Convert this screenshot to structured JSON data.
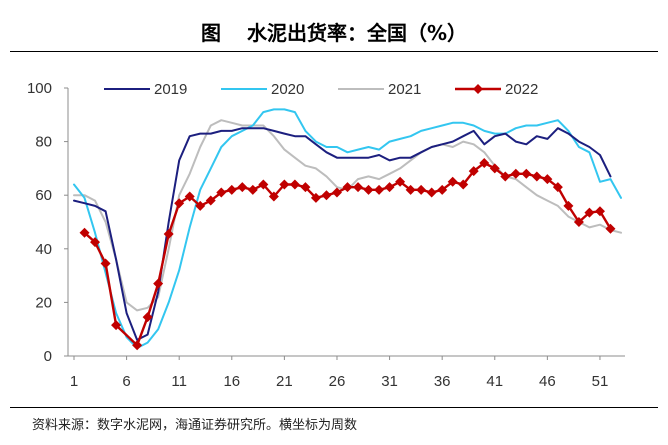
{
  "figure": {
    "label": "图"
  },
  "source": "资料来源：数字水泥网，海通证券研究所。横坐标为周数",
  "chart_data": {
    "type": "line",
    "title": "水泥出货率：全国（%）",
    "xlim": [
      1,
      53
    ],
    "ylim": [
      0,
      100
    ],
    "xticks": [
      1,
      6,
      11,
      16,
      21,
      26,
      31,
      36,
      41,
      46,
      51
    ],
    "yticks": [
      0,
      20,
      40,
      60,
      80,
      100
    ],
    "x": [
      1,
      2,
      3,
      4,
      5,
      6,
      7,
      8,
      9,
      10,
      11,
      12,
      13,
      14,
      15,
      16,
      17,
      18,
      19,
      20,
      21,
      22,
      23,
      24,
      25,
      26,
      27,
      28,
      29,
      30,
      31,
      32,
      33,
      34,
      35,
      36,
      37,
      38,
      39,
      40,
      41,
      42,
      43,
      44,
      45,
      46,
      47,
      48,
      49,
      50,
      51,
      52,
      53
    ],
    "series": [
      {
        "name": "2019",
        "color": "#1c1f7f",
        "markers": false,
        "values": [
          58,
          57,
          56,
          54,
          36,
          16,
          6,
          8,
          24,
          50,
          73,
          82,
          83,
          83,
          84,
          84,
          85,
          85,
          85,
          84,
          83,
          82,
          82,
          79,
          76,
          74,
          74,
          74,
          74,
          75,
          73,
          74,
          74,
          76,
          78,
          79,
          80,
          82,
          84,
          79,
          82,
          83,
          80,
          79,
          82,
          81,
          85,
          83,
          80,
          78,
          75,
          67,
          null
        ]
      },
      {
        "name": "2020",
        "color": "#33c6f0",
        "markers": false,
        "values": [
          64,
          59,
          46,
          31,
          16,
          7,
          3,
          5,
          10,
          20,
          32,
          48,
          62,
          70,
          78,
          82,
          84,
          86,
          91,
          92,
          92,
          91,
          84,
          80,
          78,
          78,
          76,
          77,
          78,
          77,
          80,
          81,
          82,
          84,
          85,
          86,
          87,
          87,
          86,
          84,
          83,
          83,
          85,
          86,
          86,
          87,
          88,
          84,
          78,
          76,
          65,
          66,
          59
        ]
      },
      {
        "name": "2021",
        "color": "#bdbdbd",
        "markers": false,
        "values": [
          60,
          60,
          58,
          50,
          36,
          20,
          17,
          18,
          22,
          40,
          60,
          68,
          78,
          86,
          88,
          87,
          86,
          86,
          86,
          82,
          77,
          74,
          71,
          70,
          67,
          63,
          62,
          66,
          67,
          66,
          68,
          70,
          73,
          76,
          78,
          79,
          78,
          80,
          79,
          76,
          71,
          67,
          66,
          63,
          60,
          58,
          56,
          52,
          50,
          48,
          49,
          47,
          46
        ]
      },
      {
        "name": "2022",
        "color": "#c00000",
        "markers": true,
        "values": [
          null,
          46,
          42.5,
          34.5,
          11.5,
          null,
          4,
          14.5,
          27,
          45.5,
          57,
          59.5,
          56,
          58,
          61,
          62,
          63,
          62,
          64,
          59.5,
          64,
          64,
          63,
          59,
          60,
          61,
          63,
          63,
          62,
          62,
          63,
          65,
          62,
          62,
          61,
          62,
          65,
          64,
          69,
          72,
          70,
          67,
          68,
          68,
          67,
          66,
          63,
          56,
          50,
          53.5,
          54,
          47.5,
          null
        ]
      }
    ]
  }
}
